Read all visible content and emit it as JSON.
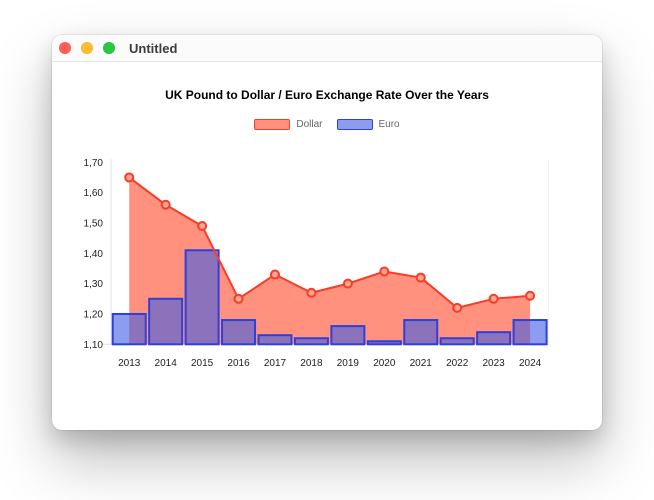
{
  "window": {
    "title": "Untitled",
    "traffic_lights": {
      "close_color": "#ff5f57",
      "minimize_color": "#febc2e",
      "zoom_color": "#28c840"
    }
  },
  "chart_data": {
    "type": "combo-area-line-bar",
    "title": "UK Pound to Dollar / Euro Exchange Rate Over the Years",
    "categories": [
      "2013",
      "2014",
      "2015",
      "2016",
      "2017",
      "2018",
      "2019",
      "2020",
      "2021",
      "2022",
      "2023",
      "2024"
    ],
    "series": [
      {
        "name": "Dollar",
        "type": "area-line-with-points",
        "values": [
          1.65,
          1.56,
          1.49,
          1.25,
          1.33,
          1.27,
          1.3,
          1.34,
          1.32,
          1.22,
          1.25,
          1.26
        ],
        "fill_color": "rgba(255,99,71,0.7)",
        "border_color": "#f93c28",
        "marker_fill": "#fba48f"
      },
      {
        "name": "Euro",
        "type": "bar",
        "values": [
          1.2,
          1.25,
          1.41,
          1.18,
          1.13,
          1.12,
          1.16,
          1.11,
          1.18,
          1.12,
          1.14,
          1.18
        ],
        "fill_color": "rgba(63,92,228,0.6)",
        "border_color": "#2e40da"
      }
    ],
    "ylim": [
      1.1,
      1.7
    ],
    "y_ticks": [
      {
        "value": 1.1,
        "label": "1,10"
      },
      {
        "value": 1.2,
        "label": "1,20"
      },
      {
        "value": 1.3,
        "label": "1,30"
      },
      {
        "value": 1.4,
        "label": "1,40"
      },
      {
        "value": 1.5,
        "label": "1,50"
      },
      {
        "value": 1.6,
        "label": "1,60"
      },
      {
        "value": 1.7,
        "label": "1,70"
      }
    ],
    "legend_position": "top",
    "grid": false,
    "number_format": "comma-decimal",
    "axis_color": "#e4e4e4",
    "tick_label_color": "#222222",
    "legend_label_color": "#666666"
  }
}
